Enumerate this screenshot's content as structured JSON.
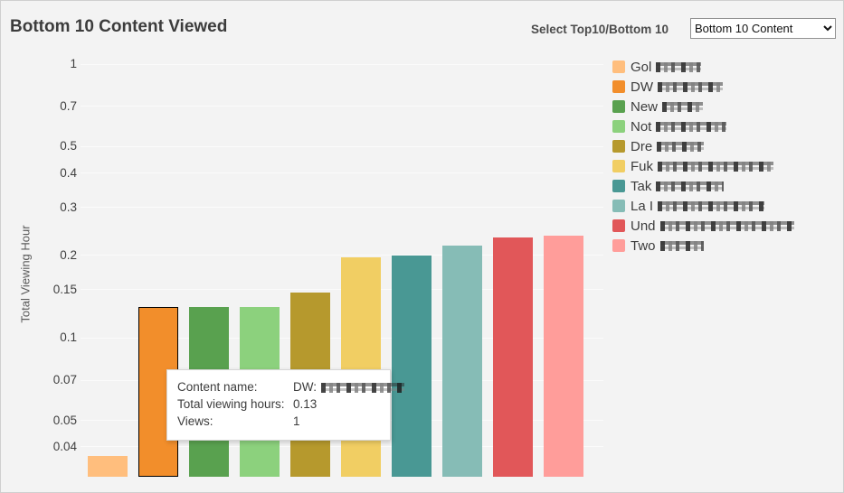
{
  "header": {
    "title": "Bottom 10 Content Viewed",
    "selector_label": "Select Top10/Bottom 10",
    "selector_value": "Bottom 10 Content"
  },
  "chart_data": {
    "type": "bar",
    "title": "Bottom 10 Content Viewed",
    "xlabel": "",
    "ylabel": "Total Viewing Hour",
    "y_scale": "log",
    "ylim": [
      0.031,
      1.1
    ],
    "y_ticks": [
      1,
      0.7,
      0.5,
      0.4,
      0.3,
      0.2,
      0.15,
      0.1,
      0.07,
      0.05,
      0.04
    ],
    "grid": true,
    "legend_position": "right",
    "categories_redacted": true,
    "categories": [
      "Gol…",
      "DW …",
      "New…",
      "Not …",
      "Dre…",
      "Fuk…",
      "Tak…",
      "La I…",
      "Und…",
      "Two…"
    ],
    "series": [
      {
        "name": "Total viewing hours",
        "values": [
          0.037,
          0.13,
          0.13,
          0.13,
          0.147,
          0.197,
          0.2,
          0.218,
          0.232,
          0.236
        ]
      }
    ],
    "bar_colors": [
      "#FFBE7D",
      "#F28E2B",
      "#59A14F",
      "#8CD17D",
      "#B6992D",
      "#F1CE63",
      "#499894",
      "#86BCB6",
      "#E15759",
      "#FF9D9A"
    ],
    "highlighted_index": 1
  },
  "legend": {
    "items": [
      {
        "prefix": "Gol",
        "redact_width": 50
      },
      {
        "prefix": "DW",
        "redact_width": 72
      },
      {
        "prefix": "New",
        "redact_width": 45
      },
      {
        "prefix": "Not",
        "redact_width": 78
      },
      {
        "prefix": "Dre",
        "redact_width": 52
      },
      {
        "prefix": "Fuk",
        "redact_width": 128
      },
      {
        "prefix": "Tak",
        "redact_width": 75
      },
      {
        "prefix": "La I",
        "redact_width": 118
      },
      {
        "prefix": "Und",
        "redact_width": 148
      },
      {
        "prefix": "Two",
        "redact_width": 48
      }
    ]
  },
  "tooltip": {
    "rows": [
      {
        "label": "Content name:",
        "value": "DW:",
        "value_redact_width": 92
      },
      {
        "label": "Total viewing hours:",
        "value": "0.13"
      },
      {
        "label": "Views:",
        "value": "1"
      }
    ]
  }
}
